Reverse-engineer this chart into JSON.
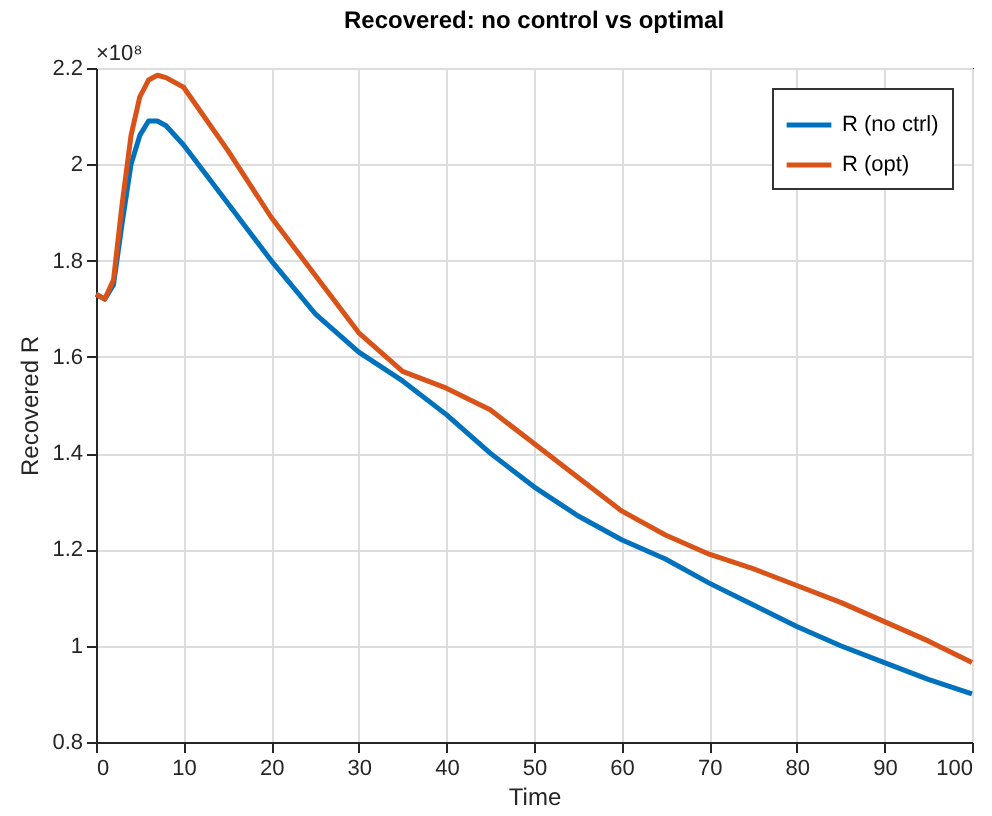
{
  "chart_data": {
    "type": "line",
    "title": "Recovered: no control vs optimal",
    "xlabel": "Time",
    "ylabel": "Recovered R",
    "x": [
      0,
      1,
      2,
      3,
      4,
      5,
      6,
      7,
      8,
      10,
      15,
      20,
      25,
      30,
      35,
      40,
      45,
      50,
      55,
      60,
      65,
      70,
      75,
      80,
      85,
      90,
      95,
      100
    ],
    "series": [
      {
        "name": "R (no ctrl)",
        "color": "#0072bd",
        "values": [
          1.73,
          1.72,
          1.75,
          1.88,
          2.0,
          2.06,
          2.09,
          2.09,
          2.08,
          2.04,
          1.92,
          1.8,
          1.69,
          1.61,
          1.55,
          1.48,
          1.4,
          1.33,
          1.27,
          1.22,
          1.18,
          1.13,
          1.085,
          1.04,
          1.0,
          0.965,
          0.93,
          0.9
        ]
      },
      {
        "name": "R (opt)",
        "color": "#d95319",
        "values": [
          1.73,
          1.72,
          1.76,
          1.92,
          2.06,
          2.14,
          2.175,
          2.185,
          2.18,
          2.16,
          2.03,
          1.89,
          1.77,
          1.65,
          1.57,
          1.535,
          1.49,
          1.42,
          1.35,
          1.28,
          1.23,
          1.19,
          1.16,
          1.125,
          1.09,
          1.05,
          1.01,
          0.965
        ]
      }
    ],
    "xlim": [
      0,
      100
    ],
    "xticks": [
      0,
      10,
      20,
      30,
      40,
      50,
      60,
      70,
      80,
      90,
      100
    ],
    "ylim": [
      0.8,
      2.2
    ],
    "yticks": [
      0.8,
      1,
      1.2,
      1.4,
      1.6,
      1.8,
      2,
      2.2
    ],
    "annotations": [
      "×10⁸"
    ],
    "grid": true,
    "legend": "top right",
    "marker": "none",
    "line_style": "solid"
  }
}
